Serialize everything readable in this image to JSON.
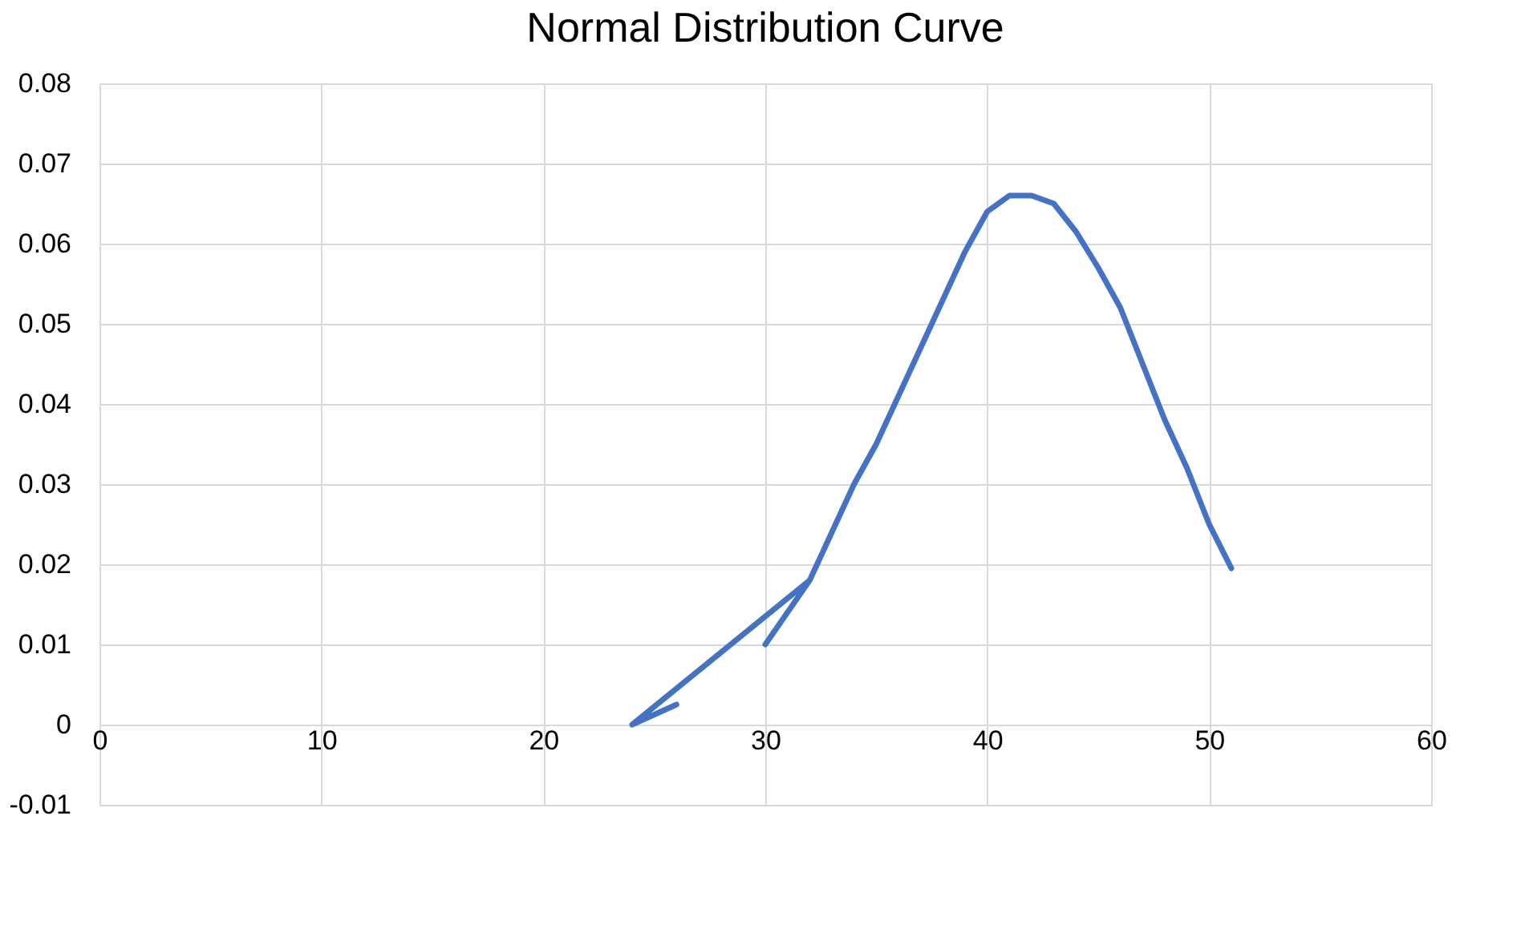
{
  "chart_data": {
    "type": "line",
    "title": "Normal Distribution Curve",
    "x": [
      26,
      24,
      32,
      30,
      32,
      33,
      34,
      35,
      36,
      37,
      38,
      39,
      40,
      41,
      42,
      43,
      44,
      45,
      46,
      47,
      48,
      49,
      50,
      51
    ],
    "series": [
      {
        "color": "#4472c4",
        "values": [
          0.0025,
          0.0,
          0.018,
          0.01,
          0.018,
          0.024,
          0.03,
          0.035,
          0.041,
          0.047,
          0.053,
          0.059,
          0.064,
          0.066,
          0.066,
          0.065,
          0.0615,
          0.057,
          0.052,
          0.045,
          0.038,
          0.032,
          0.025,
          0.0195
        ]
      }
    ],
    "xlim": [
      0,
      60
    ],
    "xticks": [
      0,
      10,
      20,
      30,
      40,
      50,
      60
    ],
    "ylim": [
      -0.01,
      0.08
    ],
    "yticks": [
      -0.01,
      0,
      0.01,
      0.02,
      0.03,
      0.04,
      0.05,
      0.06,
      0.07,
      0.08
    ],
    "grid": true,
    "marker": "none",
    "line_style": "solid"
  }
}
